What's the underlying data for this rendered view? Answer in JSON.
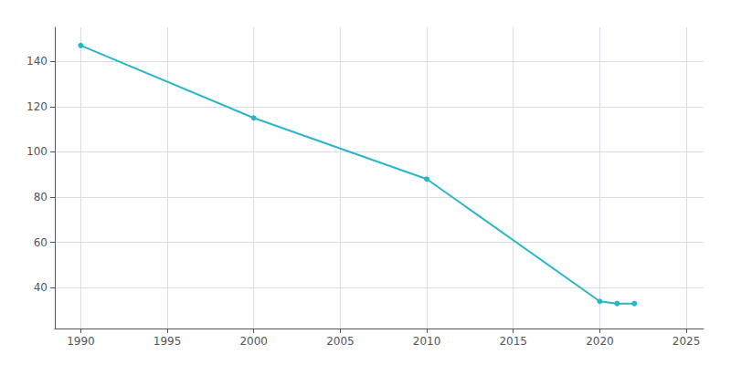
{
  "chart_data": {
    "type": "line",
    "x": [
      1990,
      2000,
      2010,
      2020,
      2021,
      2022
    ],
    "values": [
      147,
      115,
      88,
      34,
      33,
      33
    ],
    "color": "#29b6c8",
    "marker": "circle",
    "xlim": [
      1988.5,
      2026
    ],
    "ylim": [
      22,
      155
    ],
    "xticks": [
      1990,
      1995,
      2000,
      2005,
      2010,
      2015,
      2020,
      2025
    ],
    "yticks": [
      40,
      60,
      80,
      100,
      120,
      140
    ],
    "grid": true
  }
}
